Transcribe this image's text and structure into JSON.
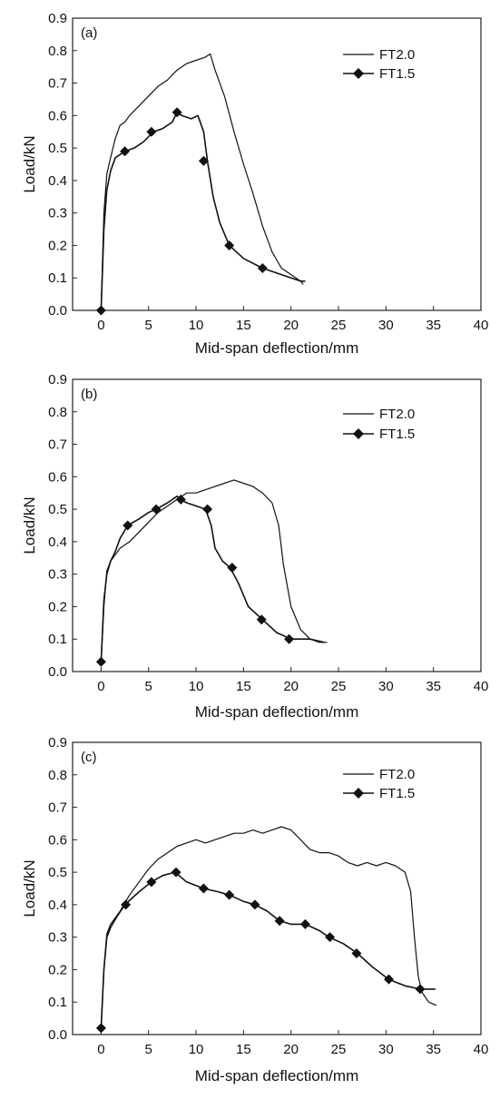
{
  "chart_data": [
    {
      "type": "line",
      "panel_label": "(a)",
      "xlabel": "Mid-span deflection/mm",
      "ylabel": "Load/kN",
      "xlim": [
        -3,
        40
      ],
      "ylim": [
        0,
        0.9
      ],
      "xticks": [
        "0",
        "5",
        "10",
        "15",
        "20",
        "25",
        "30",
        "35",
        "40"
      ],
      "yticks": [
        "0.0",
        "0.1",
        "0.2",
        "0.3",
        "0.4",
        "0.5",
        "0.6",
        "0.7",
        "0.8",
        "0.9"
      ],
      "legend_position": "top-right",
      "grid": false,
      "series": [
        {
          "name": "FT2.0",
          "marker": "none",
          "x": [
            0,
            0.3,
            0.6,
            1,
            1.5,
            2,
            2.5,
            3,
            4,
            5,
            6,
            7,
            8,
            9,
            10,
            11,
            11.5,
            12,
            13,
            14,
            15,
            16,
            17,
            18,
            19,
            20,
            21,
            21.3
          ],
          "y": [
            0.0,
            0.3,
            0.42,
            0.47,
            0.53,
            0.57,
            0.58,
            0.6,
            0.63,
            0.66,
            0.69,
            0.71,
            0.74,
            0.76,
            0.77,
            0.78,
            0.79,
            0.74,
            0.66,
            0.55,
            0.45,
            0.36,
            0.26,
            0.18,
            0.13,
            0.11,
            0.09,
            0.08
          ]
        },
        {
          "name": "FT1.5",
          "marker": "diamond",
          "x": [
            0,
            0.3,
            0.6,
            1,
            1.5,
            2,
            2.5,
            3.5,
            4.5,
            5.5,
            6.5,
            7.5,
            8,
            8.5,
            9.5,
            10.2,
            10.8,
            11.2,
            11.8,
            12.5,
            13.5,
            15,
            17,
            19,
            21,
            21.5
          ],
          "y": [
            0.0,
            0.25,
            0.37,
            0.43,
            0.47,
            0.48,
            0.49,
            0.5,
            0.52,
            0.55,
            0.56,
            0.58,
            0.61,
            0.6,
            0.59,
            0.6,
            0.55,
            0.46,
            0.35,
            0.27,
            0.2,
            0.16,
            0.13,
            0.11,
            0.09,
            0.09
          ],
          "marker_x": [
            0,
            2.5,
            5.3,
            8,
            10.8,
            13.5,
            17
          ],
          "marker_y": [
            0.0,
            0.49,
            0.55,
            0.61,
            0.46,
            0.2,
            0.13
          ]
        }
      ]
    },
    {
      "type": "line",
      "panel_label": "(b)",
      "xlabel": "Mid-span deflection/mm",
      "ylabel": "Load/kN",
      "xlim": [
        -3,
        40
      ],
      "ylim": [
        0,
        0.9
      ],
      "xticks": [
        "0",
        "5",
        "10",
        "15",
        "20",
        "25",
        "30",
        "35",
        "40"
      ],
      "yticks": [
        "0.0",
        "0.1",
        "0.2",
        "0.3",
        "0.4",
        "0.5",
        "0.6",
        "0.7",
        "0.8",
        "0.9"
      ],
      "legend_position": "top-right",
      "grid": false,
      "series": [
        {
          "name": "FT2.0",
          "marker": "none",
          "x": [
            0,
            0.3,
            0.6,
            1,
            1.5,
            2,
            3,
            4,
            5,
            6,
            7,
            8,
            9,
            10,
            11,
            12,
            13,
            14,
            15,
            16,
            17,
            18,
            18.7,
            19.2,
            20,
            21,
            22,
            23,
            23.8
          ],
          "y": [
            0.03,
            0.2,
            0.31,
            0.34,
            0.36,
            0.38,
            0.4,
            0.43,
            0.46,
            0.49,
            0.51,
            0.53,
            0.55,
            0.55,
            0.56,
            0.57,
            0.58,
            0.59,
            0.58,
            0.57,
            0.55,
            0.52,
            0.45,
            0.33,
            0.2,
            0.13,
            0.1,
            0.09,
            0.09
          ]
        },
        {
          "name": "FT1.5",
          "marker": "diamond",
          "x": [
            0,
            0.3,
            0.6,
            1,
            1.5,
            2,
            2.8,
            4,
            5,
            5.8,
            7,
            8,
            8.4,
            9,
            10,
            11,
            11.6,
            12,
            12.8,
            13.6,
            14.5,
            15.5,
            17,
            18.5,
            20,
            22,
            23.5
          ],
          "y": [
            0.03,
            0.22,
            0.3,
            0.34,
            0.37,
            0.41,
            0.45,
            0.47,
            0.49,
            0.5,
            0.52,
            0.54,
            0.53,
            0.52,
            0.51,
            0.5,
            0.45,
            0.38,
            0.34,
            0.32,
            0.27,
            0.2,
            0.16,
            0.12,
            0.1,
            0.1,
            0.09
          ],
          "marker_x": [
            0,
            2.8,
            5.8,
            8.4,
            11.2,
            13.8,
            16.9,
            19.8
          ],
          "marker_y": [
            0.03,
            0.45,
            0.5,
            0.53,
            0.5,
            0.32,
            0.16,
            0.1
          ]
        }
      ]
    },
    {
      "type": "line",
      "panel_label": "(c)",
      "xlabel": "Mid-span deflection/mm",
      "ylabel": "Load/kN",
      "xlim": [
        -3,
        40
      ],
      "ylim": [
        0,
        0.9
      ],
      "xticks": [
        "0",
        "5",
        "10",
        "15",
        "20",
        "25",
        "30",
        "35",
        "40"
      ],
      "yticks": [
        "0.0",
        "0.1",
        "0.2",
        "0.3",
        "0.4",
        "0.5",
        "0.6",
        "0.7",
        "0.8",
        "0.9"
      ],
      "legend_position": "top-right",
      "grid": false,
      "series": [
        {
          "name": "FT2.0",
          "marker": "none",
          "x": [
            0,
            0.3,
            0.6,
            1,
            2,
            3,
            4,
            5,
            6,
            7,
            8,
            9,
            10,
            11,
            12,
            13,
            14,
            15,
            16,
            17,
            18,
            19,
            20,
            21,
            22,
            23,
            24,
            25,
            26,
            27,
            28,
            29,
            30,
            31,
            32,
            32.6,
            33,
            33.4,
            33.8,
            34.5,
            35.3
          ],
          "y": [
            0.02,
            0.2,
            0.31,
            0.34,
            0.38,
            0.43,
            0.47,
            0.51,
            0.54,
            0.56,
            0.58,
            0.59,
            0.6,
            0.59,
            0.6,
            0.61,
            0.62,
            0.62,
            0.63,
            0.62,
            0.63,
            0.64,
            0.63,
            0.6,
            0.57,
            0.56,
            0.56,
            0.55,
            0.53,
            0.52,
            0.53,
            0.52,
            0.53,
            0.52,
            0.5,
            0.44,
            0.3,
            0.18,
            0.13,
            0.1,
            0.09
          ]
        },
        {
          "name": "FT1.5",
          "marker": "diamond",
          "x": [
            0,
            0.3,
            0.6,
            1,
            1.6,
            2.5,
            4,
            5.3,
            6.5,
            7.8,
            9,
            10.8,
            12.3,
            13.5,
            15,
            16.2,
            17.5,
            18.8,
            20,
            21.5,
            23,
            24,
            25.5,
            27,
            28.5,
            30.3,
            32,
            33.6,
            35.2
          ],
          "y": [
            0.02,
            0.2,
            0.3,
            0.33,
            0.36,
            0.4,
            0.44,
            0.47,
            0.49,
            0.5,
            0.47,
            0.45,
            0.44,
            0.43,
            0.41,
            0.4,
            0.38,
            0.35,
            0.34,
            0.34,
            0.32,
            0.3,
            0.28,
            0.25,
            0.21,
            0.17,
            0.15,
            0.14,
            0.14
          ],
          "marker_x": [
            0,
            2.6,
            5.3,
            7.9,
            10.8,
            13.5,
            16.2,
            18.8,
            21.5,
            24.1,
            26.9,
            30.3,
            33.6
          ],
          "marker_y": [
            0.02,
            0.4,
            0.47,
            0.5,
            0.45,
            0.43,
            0.4,
            0.35,
            0.34,
            0.3,
            0.25,
            0.17,
            0.14
          ]
        }
      ]
    }
  ]
}
